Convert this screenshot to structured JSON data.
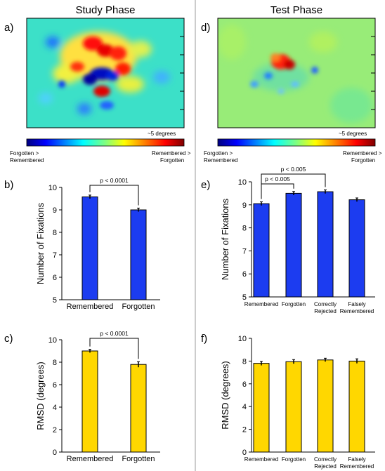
{
  "phases": {
    "study": "Study Phase",
    "test": "Test Phase"
  },
  "heatmap_labels": {
    "scale": "~5 degrees",
    "left_line1": "Forgotten >",
    "left_line2": "Remembered",
    "right_line1": "Remembered >",
    "right_line2": "Forgotten"
  },
  "colors": {
    "bar_blue": "#1c3cf0",
    "bar_yellow": "#ffd700",
    "divider": "#9a9a9a"
  },
  "chart_data": [
    {
      "panel": "a)",
      "type": "heatmap",
      "phase": "Study Phase",
      "peaks_positive": [
        "upper-center red cluster",
        "lower-center red spot"
      ],
      "peaks_negative": [
        "central dark blue cluster"
      ]
    },
    {
      "panel": "d)",
      "type": "heatmap",
      "phase": "Test Phase",
      "peaks_positive": [
        "single red spot near center"
      ],
      "peaks_negative": [
        "scattered blue spots below center"
      ]
    },
    {
      "panel": "b)",
      "type": "bar",
      "ylabel": "Number of Fixations",
      "ylim": [
        5,
        10
      ],
      "yticks": [
        5,
        6,
        7,
        8,
        9,
        10
      ],
      "categories": [
        [
          "Remembered"
        ],
        [
          "Forgotten"
        ]
      ],
      "values": [
        9.58,
        9.0
      ],
      "errors": [
        0.08,
        0.08
      ],
      "color": "#1c3cf0",
      "significance": [
        {
          "from": 0,
          "to": 1,
          "label": "p < 0.0001"
        }
      ]
    },
    {
      "panel": "e)",
      "type": "bar",
      "ylabel": "Number of Fixations",
      "ylim": [
        5,
        10
      ],
      "yticks": [
        5,
        6,
        7,
        8,
        9,
        10
      ],
      "categories": [
        [
          "Remembered"
        ],
        [
          "Forgotten"
        ],
        [
          "Correctly",
          "Rejected"
        ],
        [
          "Falsely",
          "Remembered"
        ]
      ],
      "values": [
        9.05,
        9.5,
        9.57,
        9.22
      ],
      "errors": [
        0.08,
        0.08,
        0.08,
        0.08
      ],
      "color": "#1c3cf0",
      "significance": [
        {
          "from": 0,
          "to": 1,
          "label": "p < 0.005"
        },
        {
          "from": 0,
          "to": 2,
          "label": "p < 0.005"
        }
      ]
    },
    {
      "panel": "c)",
      "type": "bar",
      "ylabel": "RMSD (degrees)",
      "ylim": [
        0,
        10
      ],
      "yticks": [
        0,
        2,
        4,
        6,
        8,
        10
      ],
      "categories": [
        [
          "Remembered"
        ],
        [
          "Forgotten"
        ]
      ],
      "values": [
        9.0,
        7.8
      ],
      "errors": [
        0.15,
        0.25
      ],
      "color": "#ffd700",
      "significance": [
        {
          "from": 0,
          "to": 1,
          "label": "p < 0.0001"
        }
      ]
    },
    {
      "panel": "f)",
      "type": "bar",
      "ylabel": "RMSD (degrees)",
      "ylim": [
        0,
        10
      ],
      "yticks": [
        0,
        2,
        4,
        6,
        8,
        10
      ],
      "categories": [
        [
          "Remembered"
        ],
        [
          "Forgotten"
        ],
        [
          "Correctly",
          "Rejected"
        ],
        [
          "Falsely",
          "Remembered"
        ]
      ],
      "values": [
        7.8,
        7.95,
        8.1,
        8.0
      ],
      "errors": [
        0.18,
        0.18,
        0.15,
        0.2
      ],
      "color": "#ffd700",
      "significance": []
    }
  ]
}
